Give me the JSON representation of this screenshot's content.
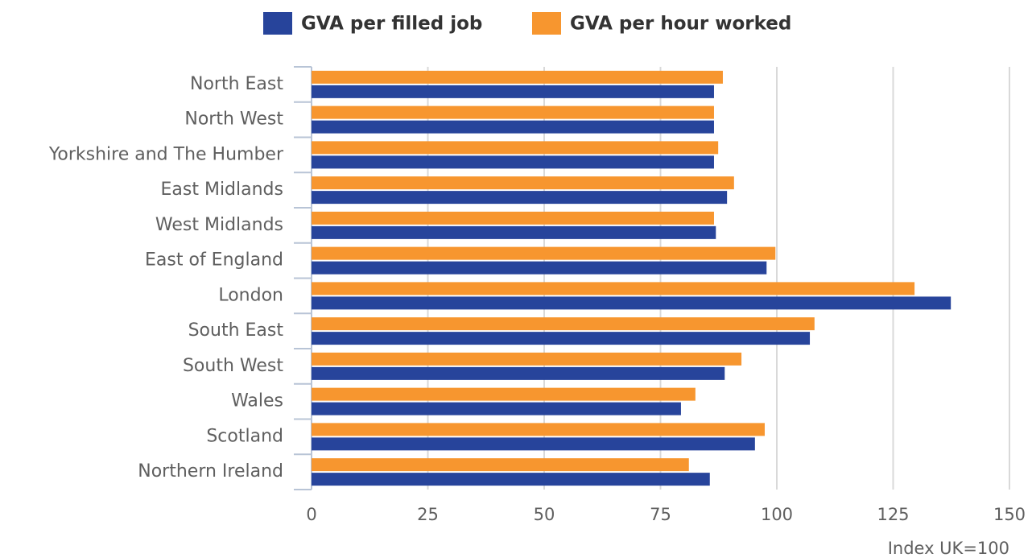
{
  "chart_data": {
    "type": "barh",
    "categories": [
      "North East",
      "North West",
      "Yorkshire and The Humber",
      "East Midlands",
      "West Midlands",
      "East of England",
      "London",
      "South East",
      "South West",
      "Wales",
      "Scotland",
      "Northern Ireland"
    ],
    "series": [
      {
        "name": "GVA per filled job",
        "color": "#27449b",
        "values": [
          86.5,
          86.5,
          86.5,
          89.3,
          86.9,
          97.8,
          137.4,
          107.1,
          88.8,
          79.4,
          95.3,
          85.6
        ]
      },
      {
        "name": "GVA per hour worked",
        "color": "#f7962f",
        "values": [
          88.4,
          86.5,
          87.4,
          90.8,
          86.5,
          99.7,
          129.6,
          108.1,
          92.4,
          82.5,
          97.4,
          81.1
        ]
      }
    ],
    "xlabel": "Index UK=100",
    "xlim": [
      0,
      150
    ],
    "xticks": [
      0,
      25,
      50,
      75,
      100,
      125,
      150
    ],
    "grid": true
  }
}
